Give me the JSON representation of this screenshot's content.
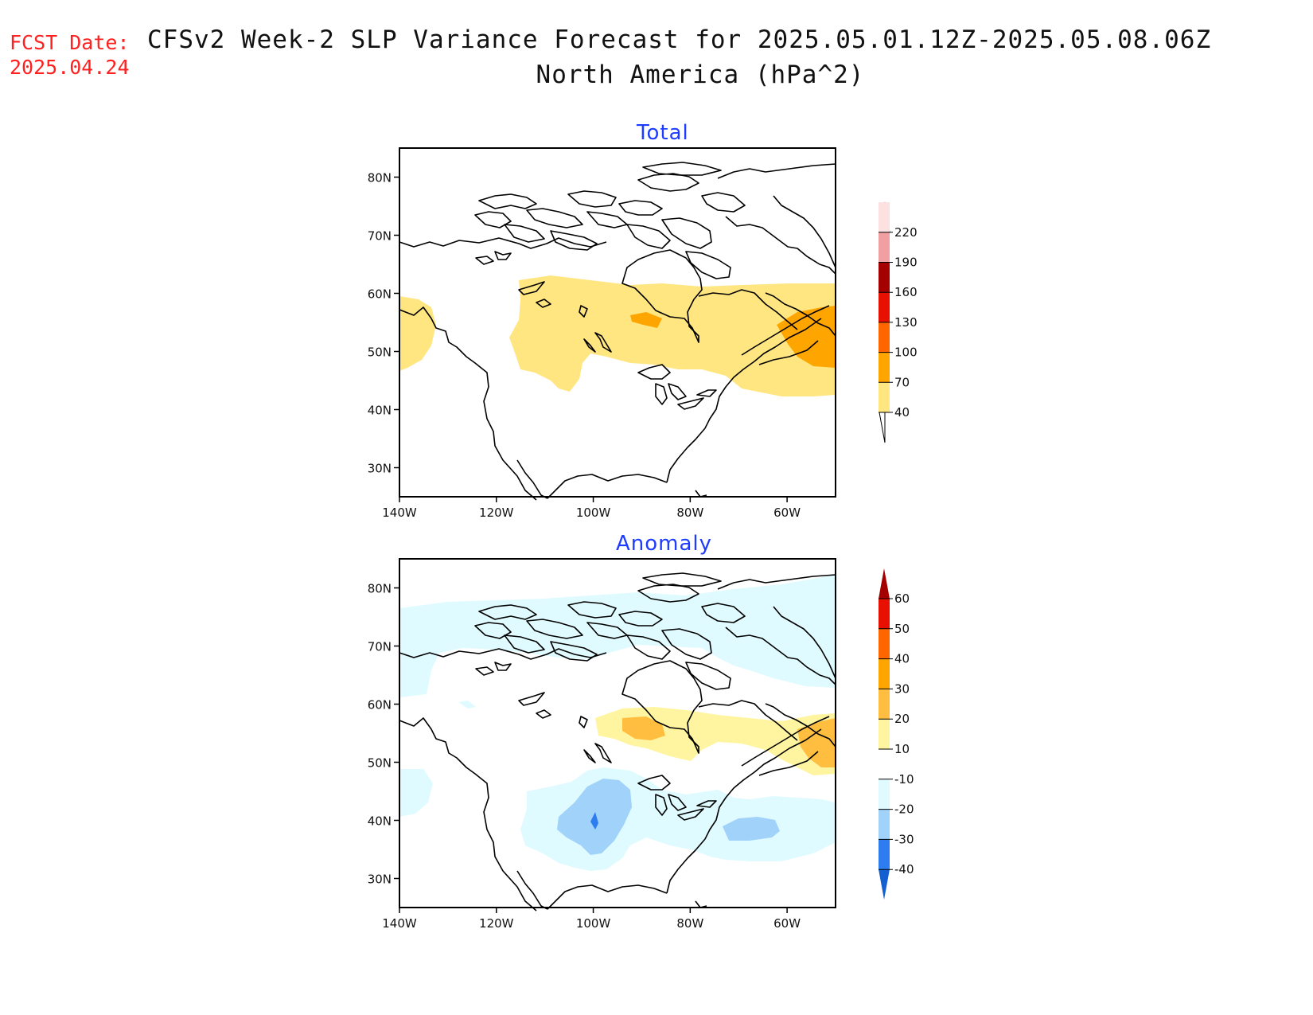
{
  "header": {
    "fcst_label": "FCST Date:",
    "fcst_date": "2025.04.24",
    "title_line1": "CFSv2 Week-2 SLP Variance Forecast for 2025.05.01.12Z-2025.05.08.06Z",
    "title_line2": "North America (hPa^2)"
  },
  "axes": {
    "lat_labels": [
      "80N",
      "70N",
      "60N",
      "50N",
      "40N",
      "30N"
    ],
    "lon_labels": [
      "140W",
      "120W",
      "100W",
      "80W",
      "60W"
    ],
    "lon_range": [
      -140,
      -50
    ],
    "lat_range": [
      25,
      85
    ]
  },
  "panels": [
    {
      "title": "Total",
      "colorbar": {
        "labels": [
          "40",
          "70",
          "100",
          "130",
          "160",
          "190",
          "220"
        ],
        "colors": [
          "#ffe680",
          "#ffa500",
          "#ff6600",
          "#e81000",
          "#a50000",
          "#f0a0a0",
          "#fde0e0"
        ],
        "extend_low": "#ffffff",
        "extend_high": "#fff0f0"
      }
    },
    {
      "title": "Anomaly",
      "colorbar": {
        "labels": [
          "60",
          "50",
          "40",
          "30",
          "20",
          "10",
          "-10",
          "-20",
          "-30",
          "-40"
        ],
        "colors_top_to_bottom": [
          "#a50000",
          "#e81000",
          "#ff6600",
          "#ffa500",
          "#ffbe40",
          "#fff5a0",
          "#ffffff",
          "#e0fbff",
          "#a0d2fa",
          "#2e7df0",
          "#1460d0"
        ]
      }
    }
  ],
  "chart_data": [
    {
      "type": "heatmap",
      "title": "Total",
      "units": "hPa^2",
      "levels": [
        40,
        70,
        100,
        130,
        160,
        190,
        220
      ],
      "xlim": [
        -140,
        -50
      ],
      "ylim": [
        25,
        85
      ],
      "regions": [
        {
          "level": "40-70",
          "area": "northeastern Pacific off British Columbia"
        },
        {
          "level": "40-70",
          "area": "central Canada and Hudson Bay band, 45N-62N"
        },
        {
          "level": "40-70",
          "area": "Great Lakes to Newfoundland"
        },
        {
          "level": "70-100",
          "area": "southwest Hudson Bay"
        },
        {
          "level": "70-100",
          "area": "Labrador Sea / eastern Quebec"
        }
      ]
    },
    {
      "type": "heatmap",
      "title": "Anomaly",
      "units": "hPa^2",
      "levels": [
        -40,
        -30,
        -20,
        -10,
        10,
        20,
        30,
        40,
        50,
        60
      ],
      "xlim": [
        -140,
        -50
      ],
      "ylim": [
        25,
        85
      ],
      "regions": [
        {
          "level": "-20 to -10",
          "area": "Arctic archipelago and Greenland"
        },
        {
          "level": "-20 to -10",
          "area": "central United States and western Atlantic"
        },
        {
          "level": "-30 to -20",
          "area": "central Great Plains"
        },
        {
          "level": "-40 to -30",
          "area": "near 40N 100W"
        },
        {
          "level": "-30 to -20",
          "area": "off the US East Coast"
        },
        {
          "level": "10 to 20",
          "area": "Hudson Bay band and Labrador"
        },
        {
          "level": "20 to 30",
          "area": "southwest Hudson Bay and Labrador Sea"
        }
      ]
    }
  ]
}
